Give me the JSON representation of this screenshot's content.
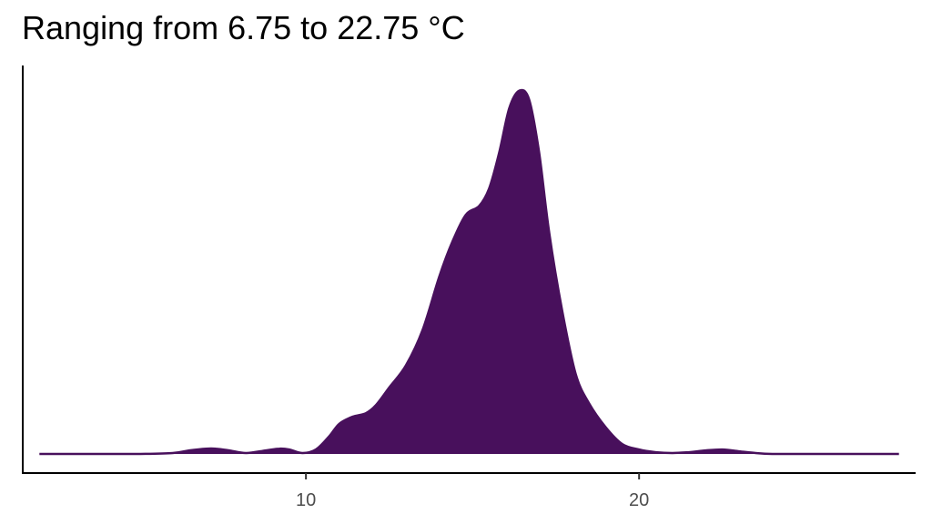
{
  "chart_data": {
    "type": "area",
    "title": "Ranging from 6.75 to 22.75 °C",
    "xlabel": "",
    "ylabel": "",
    "xlim": [
      1.5,
      28.3
    ],
    "ylim": [
      0,
      0.42
    ],
    "x_ticks": [
      10,
      20
    ],
    "grid": false,
    "legend": "none",
    "fill_color": "#48105c",
    "series": [
      {
        "x": [
          2,
          4,
          5,
          6,
          6.5,
          7,
          7.3,
          7.7,
          8.2,
          8.8,
          9.2,
          9.5,
          9.9,
          10.3,
          10.7,
          11.0,
          11.4,
          11.8,
          12.1,
          12.5,
          13.0,
          13.5,
          14.0,
          14.4,
          14.8,
          15.2,
          15.5,
          15.8,
          16.1,
          16.4,
          16.7,
          17.0,
          17.3,
          17.7,
          18.1,
          18.5,
          19.0,
          19.5,
          20.0,
          20.5,
          21.0,
          21.5,
          22.0,
          22.5,
          23.0,
          23.5,
          24.0,
          25.0,
          26.0,
          27.0,
          27.8
        ],
        "y": [
          0,
          0,
          0,
          0.001,
          0.004,
          0.006,
          0.006,
          0.004,
          0.001,
          0.004,
          0.006,
          0.005,
          0.001,
          0.005,
          0.02,
          0.034,
          0.042,
          0.046,
          0.055,
          0.075,
          0.1,
          0.14,
          0.2,
          0.24,
          0.27,
          0.28,
          0.3,
          0.34,
          0.39,
          0.41,
          0.4,
          0.34,
          0.25,
          0.16,
          0.09,
          0.057,
          0.03,
          0.011,
          0.005,
          0.002,
          0.001,
          0.002,
          0.004,
          0.005,
          0.003,
          0.001,
          0,
          0,
          0,
          0,
          0
        ]
      }
    ]
  }
}
